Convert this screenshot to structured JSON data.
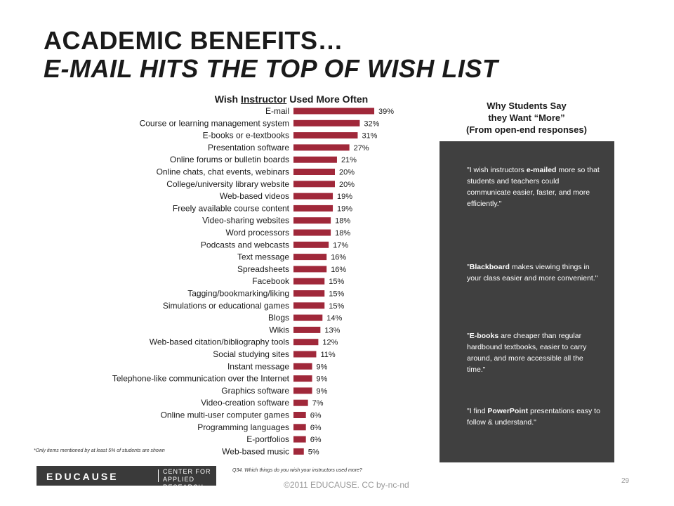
{
  "slide": {
    "title_line1": "ACADEMIC BENEFITS…",
    "title_line2": "E-MAIL HITS THE TOP OF WISH LIST",
    "chart_title_pre": "Wish ",
    "chart_title_emph": "Instructor",
    "chart_title_post": " Used More Often",
    "why_line1": "Why Students Say",
    "why_line2": "they Want “More”",
    "why_line3": "(From open-end responses)",
    "quotes": [
      {
        "pre": "\"I wish instructors ",
        "emph": "e-mailed",
        "post": " more so that students and teachers could communicate easier, faster, and more efficiently.\""
      },
      {
        "pre": "\"",
        "emph": "Blackboard",
        "post": " makes viewing things in your class easier and more convenient.\""
      },
      {
        "pre": "\"",
        "emph": "E-books",
        "post": " are cheaper than regular hardbound textbooks, easier to carry around, and more accessible all the time.\""
      },
      {
        "pre": "\"I find ",
        "emph": "PowerPoint",
        "post": " presentations easy to follow & understand.\""
      }
    ],
    "footnote": "*Only items mentioned by at least 5% of students are shown",
    "question": "Q34.  Which things do you wish your instructors used more?",
    "logo_word": "EDUCAUSE",
    "logo_center_line1": "CENTER FOR",
    "logo_center_line2": "APPLIED RESEARCH",
    "copyright": "©2011 EDUCAUSE. CC by-nc-nd",
    "page_number": "29"
  },
  "colors": {
    "bar": "#A0283A",
    "panel": "#404040"
  },
  "chart_data": {
    "type": "bar",
    "orientation": "horizontal",
    "title": "Wish Instructor Used More Often",
    "categories": [
      "E-mail",
      "Course or learning management system",
      "E-books or e-textbooks",
      "Presentation software",
      "Online forums or bulletin boards",
      "Online chats, chat events, webinars",
      "College/university library website",
      "Web-based videos",
      "Freely available course content",
      "Video-sharing websites",
      "Word processors",
      "Podcasts and webcasts",
      "Text message",
      "Spreadsheets",
      "Facebook",
      "Tagging/bookmarking/liking",
      "Simulations or educational games",
      "Blogs",
      "Wikis",
      "Web-based citation/bibliography tools",
      "Social studying sites",
      "Instant message",
      "Telephone-like communication over the Internet",
      "Graphics software",
      "Video-creation software",
      "Online multi-user computer games",
      "Programming languages",
      "E-portfolios",
      "Web-based music"
    ],
    "values": [
      39,
      32,
      31,
      27,
      21,
      20,
      20,
      19,
      19,
      18,
      18,
      17,
      16,
      16,
      15,
      15,
      15,
      14,
      13,
      12,
      11,
      9,
      9,
      9,
      7,
      6,
      6,
      6,
      5
    ],
    "value_labels": [
      "39%",
      "32%",
      "31%",
      "27%",
      "21%",
      "20%",
      "20%",
      "19%",
      "19%",
      "18%",
      "18%",
      "17%",
      "16%",
      "16%",
      "15%",
      "15%",
      "15%",
      "14%",
      "13%",
      "12%",
      "11%",
      "9%",
      "9%",
      "9%",
      "7%",
      "6%",
      "6%",
      "6%",
      "5%"
    ],
    "unit": "%",
    "xlim": [
      0,
      45
    ],
    "grid": false,
    "legend": "none"
  }
}
